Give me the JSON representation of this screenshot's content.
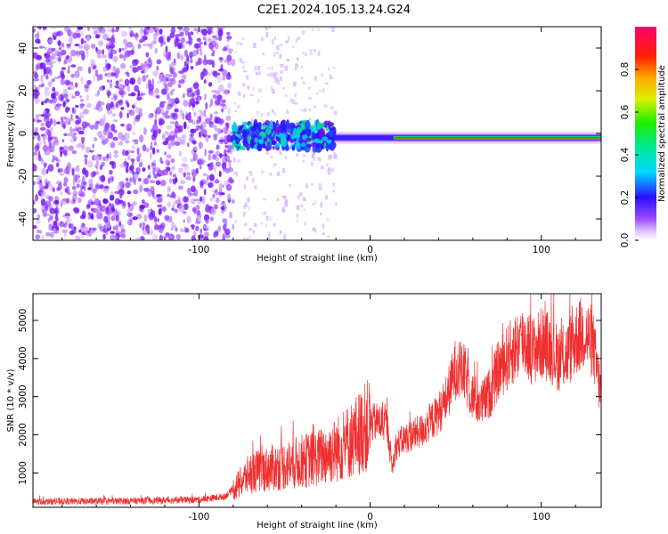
{
  "title": "C2E1.2024.105.13.24.G24",
  "colors": {
    "snr_line": "#f03030",
    "frame": "#000000"
  },
  "chart_data": [
    {
      "type": "heatmap",
      "xlabel": "Height of straight line (km)",
      "ylabel": "Frequency (Hz)",
      "xlim": [
        -197,
        135
      ],
      "ylim": [
        -50,
        50
      ],
      "xticks": [
        -100,
        0,
        100
      ],
      "yticks": [
        -40,
        -20,
        0,
        20,
        40
      ],
      "colorbar": {
        "label": "Normalized spectral amplitude",
        "range": [
          0.0,
          1.0
        ],
        "ticks": [
          0.0,
          0.2,
          0.4,
          0.6,
          0.8
        ],
        "colormap": "white-purple-blue-cyan-green-yellow-orange-red-magenta"
      },
      "noise_region_x": [
        -197,
        -80
      ],
      "carrier_frequency_hz": -2,
      "carrier_start_x": -80
    },
    {
      "type": "line",
      "xlabel": "Height of straight line (km)",
      "ylabel": "SNR (10 * v/v)",
      "xlim": [
        -197,
        135
      ],
      "ylim": [
        100,
        5700
      ],
      "xticks": [
        -100,
        0,
        100
      ],
      "yticks": [
        1000,
        2000,
        3000,
        4000,
        5000
      ],
      "series": [
        {
          "x": [
            -197,
            -150,
            -100,
            -85,
            -78,
            -70,
            -60,
            -50,
            -40,
            -30,
            -20,
            -10,
            -5,
            0,
            5,
            10,
            13,
            15,
            20,
            30,
            40,
            45,
            50,
            55,
            60,
            65,
            70,
            75,
            80,
            85,
            90,
            95,
            100,
            105,
            110,
            115,
            120,
            125,
            130,
            135
          ],
          "y": [
            250,
            260,
            300,
            380,
            650,
            1000,
            1100,
            1200,
            1300,
            1400,
            1600,
            1900,
            2100,
            2300,
            2350,
            2250,
            1100,
            1700,
            1900,
            2100,
            2550,
            3000,
            3750,
            3600,
            3000,
            2800,
            3100,
            3700,
            4000,
            4300,
            4500,
            4200,
            4400,
            4300,
            4000,
            4100,
            4500,
            4700,
            4400,
            3000
          ]
        }
      ]
    }
  ]
}
